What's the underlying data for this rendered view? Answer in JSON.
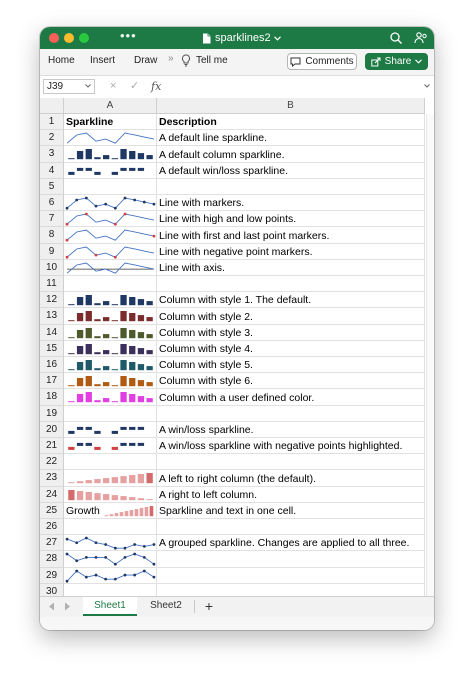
{
  "app": {
    "title": "sparklines2",
    "menu_tabs": [
      "Home",
      "Insert",
      "Draw",
      "Tell me"
    ],
    "comments_label": "Comments",
    "share_label": "Share"
  },
  "formula_bar": {
    "name_box": "J39",
    "cancel_symbol": "×",
    "enter_symbol": "✓",
    "fx_symbol": "fx",
    "formula": ""
  },
  "columns": [
    "A",
    "B"
  ],
  "rows": [
    {
      "n": "1",
      "a": "Sparkline",
      "b": "Description",
      "bold": true
    },
    {
      "n": "2",
      "b": "A default line sparkline.",
      "spark": "line"
    },
    {
      "n": "3",
      "b": "A default column sparkline.",
      "spark": "column"
    },
    {
      "n": "4",
      "b": "A default win/loss sparkline.",
      "spark": "winloss"
    },
    {
      "n": "5"
    },
    {
      "n": "6",
      "b": "Line with markers.",
      "spark": "line-markers"
    },
    {
      "n": "7",
      "b": "Line with high and low points.",
      "spark": "line-highlow"
    },
    {
      "n": "8",
      "b": "Line with first and last point markers.",
      "spark": "line-firstlast"
    },
    {
      "n": "9",
      "b": "Line with negative point markers.",
      "spark": "line-negative"
    },
    {
      "n": "10",
      "b": "Line with axis.",
      "spark": "line-axis"
    },
    {
      "n": "11"
    },
    {
      "n": "12",
      "b": "Column with style 1. The default.",
      "spark": "column",
      "color": "#1f3864"
    },
    {
      "n": "13",
      "b": "Column with style 2.",
      "spark": "column",
      "color": "#7b2c2c"
    },
    {
      "n": "14",
      "b": "Column with style 3.",
      "spark": "column",
      "color": "#4e5a2b"
    },
    {
      "n": "15",
      "b": "Column with style 4.",
      "spark": "column",
      "color": "#3d2f5b"
    },
    {
      "n": "16",
      "b": "Column with style 5.",
      "spark": "column",
      "color": "#1f5a6b"
    },
    {
      "n": "17",
      "b": "Column with style 6.",
      "spark": "column",
      "color": "#b05a12"
    },
    {
      "n": "18",
      "b": "Column with a user defined color.",
      "spark": "column",
      "color": "#e23fe2"
    },
    {
      "n": "19"
    },
    {
      "n": "20",
      "b": "A win/loss sparkline.",
      "spark": "winloss"
    },
    {
      "n": "21",
      "b": "A win/loss sparkline with negative points highlighted.",
      "spark": "winloss-neg"
    },
    {
      "n": "22"
    },
    {
      "n": "23",
      "b": "A left to right column (the default).",
      "spark": "col-ltr"
    },
    {
      "n": "24",
      "b": "A right to left column.",
      "spark": "col-rtl"
    },
    {
      "n": "25",
      "a": "Growth",
      "b": "Sparkline and text in one cell.",
      "spark": "col-text"
    },
    {
      "n": "26"
    },
    {
      "n": "27",
      "b": "A grouped sparkline. Changes are applied to all three.",
      "spark": "group1"
    },
    {
      "n": "28",
      "spark": "group2"
    },
    {
      "n": "29",
      "spark": "group3"
    },
    {
      "n": "30"
    }
  ],
  "sheets": [
    "Sheet1",
    "Sheet2"
  ],
  "add_sheet_symbol": "+",
  "spark_values": {
    "main": [
      -2,
      2,
      3,
      -1,
      0,
      -2,
      3,
      2,
      1,
      0
    ],
    "group1": [
      30,
      20,
      33,
      20,
      15,
      5,
      5,
      15,
      10,
      15
    ],
    "group2": [
      3,
      1,
      2,
      2,
      2,
      0,
      2,
      3,
      2,
      0
    ],
    "group3": [
      0,
      5,
      2,
      3,
      1,
      1,
      3,
      3,
      5,
      2
    ],
    "rtl_ltr": [
      1,
      2,
      3,
      4,
      5,
      6,
      7,
      8,
      9,
      10
    ]
  },
  "colors": {
    "line": "#4472c4",
    "marker": "#1f3864",
    "high_low": "#d13f3f",
    "accent": "#1d7a45",
    "rtl_column": "#e6a0a0",
    "rtl_column_dark": "#d46a6a"
  }
}
